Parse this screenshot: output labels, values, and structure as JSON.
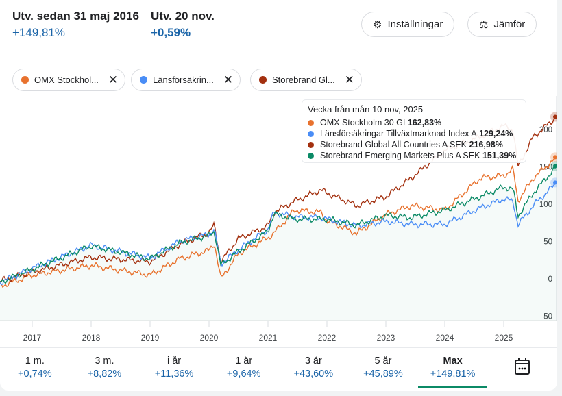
{
  "summary": {
    "since_label": "Utv. sedan 31 maj 2016",
    "since_value": "+149,81%",
    "day_label": "Utv. 20 nov.",
    "day_value": "+0,59%"
  },
  "buttons": {
    "settings": "Inställningar",
    "compare": "Jämför"
  },
  "chips": [
    {
      "label": "OMX Stockhol...",
      "color": "#e8722e"
    },
    {
      "label": "Länsförsäkrin...",
      "color": "#4a8df6"
    },
    {
      "label": "Storebrand Gl...",
      "color": "#a3300f"
    }
  ],
  "tooltip": {
    "title": "Vecka från mån 10 nov, 2025",
    "rows": [
      {
        "name": "OMX Stockholm 30 GI",
        "value": "162,83%",
        "color": "#e8722e"
      },
      {
        "name": "Länsförsäkringar Tillväxtmarknad Index A",
        "value": "129,24%",
        "color": "#4a8df6"
      },
      {
        "name": "Storebrand Global All Countries A SEK",
        "value": "216,98%",
        "color": "#a3300f"
      },
      {
        "name": "Storebrand Emerging Markets Plus A SEK",
        "value": "151,39%",
        "color": "#0b8a66"
      }
    ]
  },
  "ranges": [
    {
      "label": "1 m.",
      "value": "+0,74%"
    },
    {
      "label": "3 m.",
      "value": "+8,82%"
    },
    {
      "label": "i år",
      "value": "+11,36%"
    },
    {
      "label": "1 år",
      "value": "+9,64%"
    },
    {
      "label": "3 år",
      "value": "+43,60%"
    },
    {
      "label": "5 år",
      "value": "+45,89%"
    },
    {
      "label": "Max",
      "value": "+149,81%",
      "active": true
    }
  ],
  "chart_data": {
    "type": "line",
    "title": "",
    "xlabel": "",
    "ylabel": "%",
    "ylim": [
      -50,
      220
    ],
    "yticks": [
      "-50",
      "0",
      "50",
      "100",
      "150",
      "200"
    ],
    "xticks": [
      "2017",
      "2018",
      "2019",
      "2020",
      "2021",
      "2022",
      "2023",
      "2024",
      "2025"
    ],
    "x": [
      2016.45,
      2017.0,
      2018.0,
      2019.0,
      2019.5,
      2020.0,
      2020.09,
      2020.2,
      2020.5,
      2021.0,
      2021.1,
      2021.45,
      2021.9,
      2022.0,
      2022.5,
      2023.0,
      2023.43,
      2024.0,
      2024.6,
      2025.0,
      2025.16,
      2025.24,
      2025.5,
      2025.9
    ],
    "series": [
      {
        "name": "OMX Stockholm 30 GI",
        "color": "#e8722e",
        "values": [
          -10,
          5,
          18,
          5,
          27,
          38,
          48,
          0,
          34,
          55,
          61,
          92,
          89,
          78,
          61,
          86,
          98,
          92,
          135,
          138,
          147,
          104,
          135,
          163
        ]
      },
      {
        "name": "Länsförsäkringar Tillväxtmarknad Index A",
        "color": "#4a8df6",
        "values": [
          -5,
          14,
          45,
          28,
          50,
          60,
          66,
          20,
          39,
          66,
          89,
          83,
          82,
          80,
          71,
          77,
          73,
          73,
          95,
          107,
          104,
          72,
          98,
          129
        ]
      },
      {
        "name": "Storebrand Global All Countries A SEK",
        "color": "#a3300f",
        "values": [
          -3,
          9,
          29,
          23,
          46,
          62,
          72,
          23,
          54,
          71,
          89,
          104,
          119,
          115,
          98,
          110,
          135,
          172,
          190,
          205,
          200,
          150,
          190,
          217
        ]
      },
      {
        "name": "Storebrand Emerging Markets Plus A SEK",
        "color": "#0b8a66",
        "values": [
          -5,
          13,
          44,
          27,
          48,
          58,
          64,
          18,
          37,
          64,
          87,
          80,
          80,
          80,
          72,
          85,
          82,
          92,
          110,
          123,
          120,
          84,
          115,
          151
        ]
      }
    ]
  }
}
